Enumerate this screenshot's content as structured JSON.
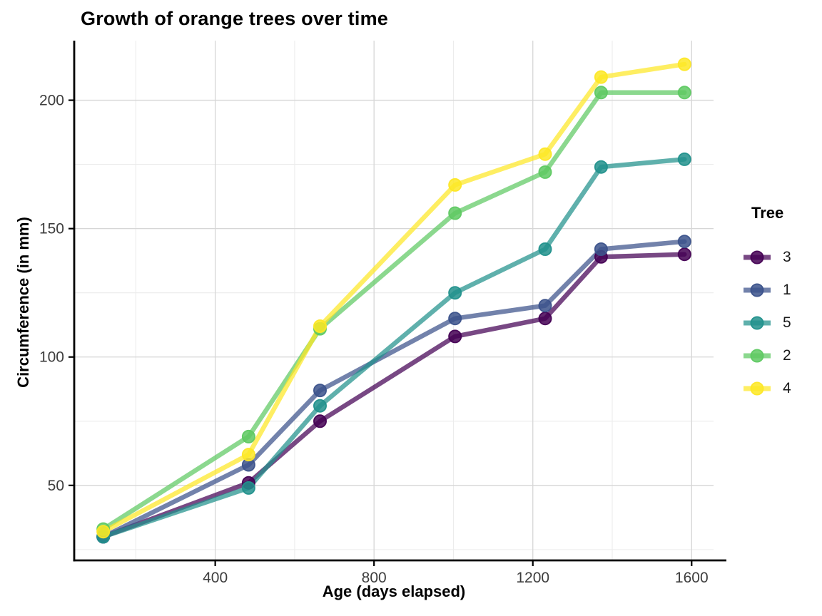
{
  "chart_data": {
    "type": "line",
    "title": "Growth of orange trees over time",
    "xlabel": "Age (days elapsed)",
    "ylabel": "Circumference (in mm)",
    "legend_title": "Tree",
    "legend_position": "right",
    "x": [
      118,
      484,
      664,
      1004,
      1231,
      1372,
      1582
    ],
    "series": [
      {
        "name": "3",
        "color": "#440154",
        "values": [
          30,
          51,
          75,
          108,
          115,
          139,
          140
        ]
      },
      {
        "name": "1",
        "color": "#3B528B",
        "values": [
          30,
          58,
          87,
          115,
          120,
          142,
          145
        ]
      },
      {
        "name": "5",
        "color": "#21918C",
        "values": [
          30,
          49,
          81,
          125,
          142,
          174,
          177
        ]
      },
      {
        "name": "2",
        "color": "#5EC962",
        "values": [
          33,
          69,
          111,
          156,
          172,
          203,
          203
        ]
      },
      {
        "name": "4",
        "color": "#FDE725",
        "values": [
          32,
          62,
          112,
          167,
          179,
          209,
          214
        ]
      }
    ],
    "x_ticks": [
      400,
      800,
      1200,
      1600
    ],
    "y_ticks": [
      50,
      100,
      150,
      200
    ],
    "x_minor_ticks": [
      200,
      600,
      1000,
      1400
    ],
    "y_minor_ticks": [
      25,
      75,
      125,
      175
    ],
    "x_domain": [
      44.8,
      1655.2
    ],
    "y_domain": [
      20.8,
      223.2
    ],
    "grid": "major+minor",
    "colors": {
      "background": "#ffffff",
      "grid_major": "#d6d6d6",
      "grid_minor": "#ececec",
      "axis_line": "#000000",
      "tick_mark": "#000000",
      "tick_label": "#3d3d3d"
    }
  }
}
